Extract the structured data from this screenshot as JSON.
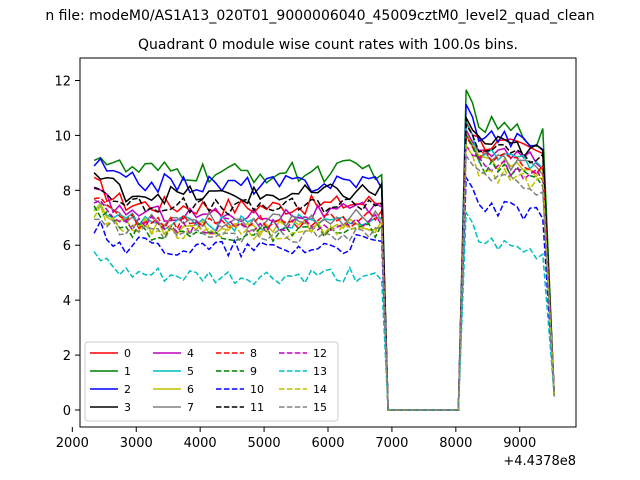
{
  "chart_data": {
    "type": "line",
    "suptitle": "n file: modeM0/AS1A13_020T01_9000006040_45009cztM0_level2_quad_clean",
    "title": "Quadrant 0 module wise count rates with 100.0s bins.",
    "xlabel": "",
    "ylabel": "",
    "x_offset_label": "+4.4378e8",
    "xlim": [
      2120,
      9880
    ],
    "ylim": [
      -0.62,
      12.82
    ],
    "x_ticks": [
      2000,
      3000,
      4000,
      5000,
      6000,
      7000,
      8000,
      9000
    ],
    "x_tick_labels": [
      "2000",
      "3000",
      "4000",
      "5000",
      "6000",
      "7000",
      "8000",
      "9000"
    ],
    "y_ticks": [
      0,
      2,
      4,
      6,
      8,
      10,
      12
    ],
    "y_tick_labels": [
      "0",
      "2",
      "4",
      "6",
      "8",
      "10",
      "12"
    ],
    "grid": false,
    "legend_position": "lower-left",
    "legend_columns": 4,
    "series": [
      {
        "name": "0",
        "color": "#ff0000",
        "dash": "solid",
        "base1": 7.6,
        "base2": 9.9,
        "amp": 0.35
      },
      {
        "name": "1",
        "color": "#008000",
        "dash": "solid",
        "base1": 8.8,
        "base2": 10.5,
        "amp": 0.4
      },
      {
        "name": "2",
        "color": "#0000ff",
        "dash": "solid",
        "base1": 8.4,
        "base2": 10.2,
        "amp": 0.35
      },
      {
        "name": "3",
        "color": "#000000",
        "dash": "solid",
        "base1": 8.0,
        "base2": 9.9,
        "amp": 0.35
      },
      {
        "name": "4",
        "color": "#bf00bf",
        "dash": "solid",
        "base1": 7.3,
        "base2": 9.6,
        "amp": 0.3
      },
      {
        "name": "5",
        "color": "#00bfbf",
        "dash": "solid",
        "base1": 7.0,
        "base2": 9.4,
        "amp": 0.3
      },
      {
        "name": "6",
        "color": "#bfbf00",
        "dash": "solid",
        "base1": 6.8,
        "base2": 9.2,
        "amp": 0.3
      },
      {
        "name": "7",
        "color": "#808080",
        "dash": "solid",
        "base1": 7.1,
        "base2": 9.3,
        "amp": 0.3
      },
      {
        "name": "8",
        "color": "#ff0000",
        "dash": "dashed",
        "base1": 7.0,
        "base2": 9.4,
        "amp": 0.3
      },
      {
        "name": "9",
        "color": "#008000",
        "dash": "dashed",
        "base1": 6.6,
        "base2": 9.0,
        "amp": 0.3
      },
      {
        "name": "10",
        "color": "#0000ff",
        "dash": "dashed",
        "base1": 6.1,
        "base2": 7.6,
        "amp": 0.35
      },
      {
        "name": "11",
        "color": "#000000",
        "dash": "dashed",
        "base1": 7.6,
        "base2": 9.7,
        "amp": 0.3
      },
      {
        "name": "12",
        "color": "#bf00bf",
        "dash": "dashed",
        "base1": 6.9,
        "base2": 9.1,
        "amp": 0.3
      },
      {
        "name": "13",
        "color": "#00bfbf",
        "dash": "dashed",
        "base1": 5.0,
        "base2": 6.2,
        "amp": 0.3
      },
      {
        "name": "14",
        "color": "#bfbf00",
        "dash": "dashed",
        "base1": 6.7,
        "base2": 8.8,
        "amp": 0.3
      },
      {
        "name": "15",
        "color": "#808080",
        "dash": "dashed",
        "base1": 6.5,
        "base2": 8.6,
        "amp": 0.3
      }
    ],
    "segments": {
      "seg1_x": [
        2340,
        6840
      ],
      "drop_x": [
        6840,
        6940
      ],
      "zero_x": [
        6940,
        8060
      ],
      "rise_x": [
        8060,
        8160
      ],
      "seg2_x": [
        8160,
        9440
      ],
      "end_x": [
        9440,
        9540
      ],
      "step": 100
    }
  }
}
